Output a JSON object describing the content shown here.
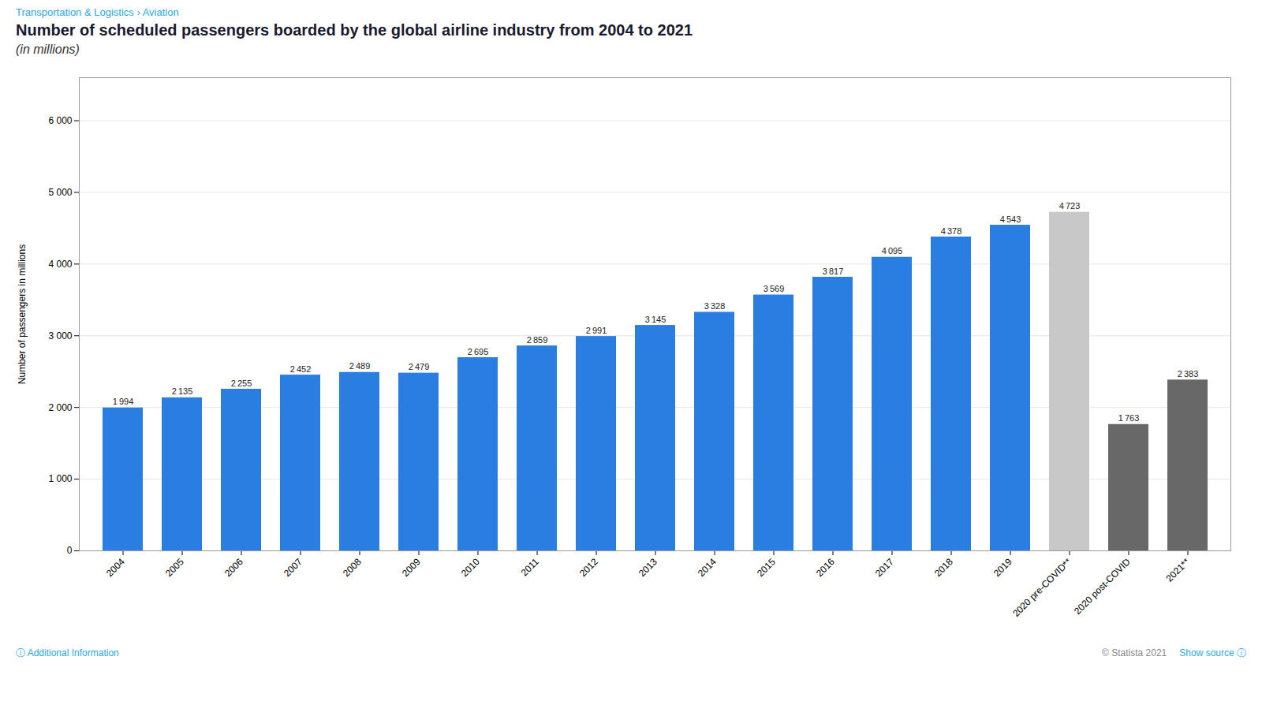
{
  "chart_data": {
    "type": "bar",
    "title": "Number of scheduled passengers boarded by the global airline industry from 2004 to 2021",
    "subtitle": "(in millions)",
    "ylabel": "Number of passengers in millions",
    "categories": [
      "2004",
      "2005",
      "2006",
      "2007",
      "2008",
      "2009",
      "2010",
      "2011",
      "2012",
      "2013",
      "2014",
      "2015",
      "2016",
      "2017",
      "2018",
      "2019",
      "2020 pre-COVID**",
      "2020 post-COVID",
      "2021**"
    ],
    "values": [
      1994,
      2135,
      2255,
      2452,
      2489,
      2479,
      2695,
      2859,
      2991,
      3145,
      3328,
      3569,
      3817,
      4095,
      4378,
      4543,
      4723,
      1763,
      2383
    ],
    "value_labels": [
      "1 994",
      "2 135",
      "2 255",
      "2 452",
      "2 489",
      "2 479",
      "2 695",
      "2 859",
      "2 991",
      "3 145",
      "3 328",
      "3 569",
      "3 817",
      "4 095",
      "4 378",
      "4 543",
      "4 723",
      "1 763",
      "2 383"
    ],
    "colors": [
      "#2a7de1",
      "#2a7de1",
      "#2a7de1",
      "#2a7de1",
      "#2a7de1",
      "#2a7de1",
      "#2a7de1",
      "#2a7de1",
      "#2a7de1",
      "#2a7de1",
      "#2a7de1",
      "#2a7de1",
      "#2a7de1",
      "#2a7de1",
      "#2a7de1",
      "#2a7de1",
      "#c8c8c8",
      "#686868",
      "#686868"
    ],
    "data_labels": true,
    "ylim": [
      0,
      6600
    ],
    "yticks": [
      0,
      {
        "value": 1000,
        "label": "1 000"
      },
      {
        "value": 2000,
        "label": "2 000"
      },
      {
        "value": 3000,
        "label": "3 000"
      },
      {
        "value": 4000,
        "label": "4 000"
      },
      {
        "value": 5000,
        "label": "5 000"
      },
      {
        "value": 6000,
        "label": "6 000"
      }
    ],
    "grid": true,
    "annotations": [
      "Transportation & Logistics › Aviation",
      "ⓘ Additional Information",
      "© Statista 2021",
      "Show source ⓘ"
    ]
  }
}
